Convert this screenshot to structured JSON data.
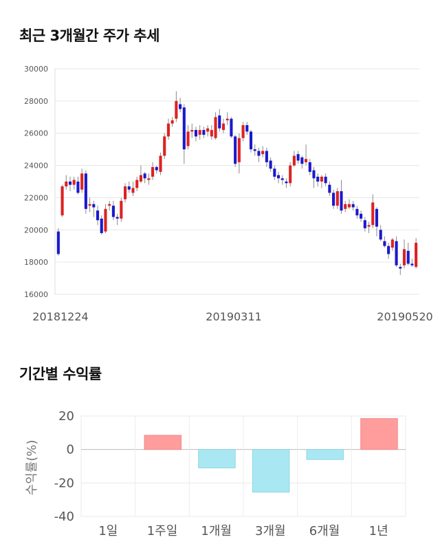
{
  "chart_data": [
    {
      "type": "candlestick",
      "title": "최근 3개월간 주가 추세",
      "ylim": [
        16000,
        30000
      ],
      "yticks": [
        16000,
        18000,
        20000,
        22000,
        24000,
        26000,
        28000,
        30000
      ],
      "xtick_labels": [
        "20181224",
        "20190311",
        "20190520"
      ],
      "up_color": "#dd2222",
      "down_color": "#1a1acc",
      "candles": [
        [
          19900,
          18500,
          20100,
          18400
        ],
        [
          20900,
          22700,
          22800,
          20800
        ],
        [
          22700,
          23000,
          23400,
          22500
        ],
        [
          23000,
          22800,
          23300,
          22400
        ],
        [
          22800,
          23100,
          23300,
          22500
        ],
        [
          23000,
          22300,
          23300,
          22200
        ],
        [
          22500,
          23500,
          23800,
          22300
        ],
        [
          23500,
          21300,
          23700,
          21000
        ],
        [
          21500,
          21600,
          22000,
          21100
        ],
        [
          21600,
          21400,
          21800,
          20800
        ],
        [
          21200,
          20600,
          21500,
          20300
        ],
        [
          20700,
          19800,
          20900,
          19700
        ],
        [
          19900,
          21300,
          21600,
          19800
        ],
        [
          21500,
          21600,
          21800,
          21200
        ],
        [
          21500,
          20800,
          21800,
          20600
        ],
        [
          20800,
          20700,
          21000,
          20300
        ],
        [
          20700,
          21800,
          22000,
          20500
        ],
        [
          21900,
          22700,
          22900,
          21700
        ],
        [
          22700,
          22500,
          23000,
          22300
        ],
        [
          22300,
          22600,
          23000,
          22100
        ],
        [
          22600,
          23100,
          23300,
          22400
        ],
        [
          23000,
          23400,
          24000,
          22900
        ],
        [
          23500,
          23200,
          23600,
          22900
        ],
        [
          23100,
          23200,
          23500,
          22800
        ],
        [
          23300,
          23900,
          24200,
          23100
        ],
        [
          23900,
          23700,
          24000,
          23500
        ],
        [
          23600,
          24600,
          24800,
          23400
        ],
        [
          24600,
          25800,
          26000,
          24400
        ],
        [
          25800,
          26600,
          26900,
          25600
        ],
        [
          26600,
          26800,
          27000,
          26400
        ],
        [
          26900,
          28000,
          28600,
          26700
        ],
        [
          27800,
          27500,
          28200,
          27300
        ],
        [
          27600,
          25000,
          27800,
          24100
        ],
        [
          25200,
          26100,
          26500,
          25000
        ],
        [
          26100,
          26200,
          26600,
          25700
        ],
        [
          26200,
          25800,
          26400,
          25500
        ],
        [
          25900,
          26200,
          26500,
          25600
        ],
        [
          26200,
          25900,
          26400,
          25700
        ],
        [
          26100,
          26300,
          26500,
          25800
        ],
        [
          25800,
          26200,
          26500,
          25600
        ],
        [
          25700,
          27000,
          27300,
          25600
        ],
        [
          27100,
          26300,
          27500,
          26100
        ],
        [
          26200,
          26600,
          26900,
          26000
        ],
        [
          26800,
          26900,
          27300,
          26500
        ],
        [
          26900,
          25800,
          27000,
          25700
        ],
        [
          25800,
          24100,
          25900,
          23900
        ],
        [
          24200,
          25700,
          26000,
          23500
        ],
        [
          25700,
          26500,
          26700,
          25500
        ],
        [
          26500,
          26100,
          26700,
          25900
        ],
        [
          26100,
          25000,
          26200,
          24800
        ],
        [
          25000,
          24900,
          25300,
          24600
        ],
        [
          24900,
          24600,
          25100,
          24200
        ],
        [
          24700,
          24900,
          25200,
          24500
        ],
        [
          24900,
          24200,
          25100,
          23900
        ],
        [
          24300,
          23800,
          24500,
          23600
        ],
        [
          23800,
          23300,
          24000,
          23100
        ],
        [
          23400,
          23200,
          23600,
          22900
        ],
        [
          23200,
          23100,
          23400,
          22800
        ],
        [
          23000,
          22900,
          23200,
          22600
        ],
        [
          22900,
          24000,
          24200,
          22700
        ],
        [
          24000,
          24600,
          24900,
          23900
        ],
        [
          24700,
          24300,
          24900,
          24100
        ],
        [
          24500,
          24100,
          24600,
          23800
        ],
        [
          24200,
          24400,
          25300,
          24000
        ],
        [
          24200,
          23600,
          24400,
          23400
        ],
        [
          23700,
          23200,
          23900,
          22600
        ],
        [
          23300,
          23000,
          23500,
          22700
        ],
        [
          23000,
          23300,
          23400,
          22600
        ],
        [
          23300,
          22900,
          23500,
          22700
        ],
        [
          22800,
          22300,
          23000,
          22100
        ],
        [
          22300,
          21500,
          22500,
          21300
        ],
        [
          21500,
          22400,
          22600,
          21300
        ],
        [
          22400,
          21200,
          23100,
          21000
        ],
        [
          21300,
          21600,
          21800,
          21100
        ],
        [
          21400,
          21600,
          21900,
          21300
        ],
        [
          21600,
          21400,
          21800,
          21200
        ],
        [
          21300,
          20900,
          21500,
          20700
        ],
        [
          21000,
          20700,
          21200,
          20500
        ],
        [
          20600,
          20100,
          20800,
          19900
        ],
        [
          20200,
          20300,
          20500,
          19800
        ],
        [
          20300,
          21700,
          22200,
          20100
        ],
        [
          21300,
          20200,
          21400,
          19600
        ],
        [
          20000,
          19400,
          20300,
          19300
        ],
        [
          19300,
          19000,
          19600,
          18900
        ],
        [
          19000,
          18500,
          19200,
          18200
        ],
        [
          18900,
          19400,
          19500,
          18700
        ],
        [
          19300,
          17800,
          19600,
          17700
        ],
        [
          17700,
          17600,
          17900,
          17200
        ],
        [
          17800,
          18800,
          19400,
          17600
        ],
        [
          18700,
          17900,
          19200,
          17800
        ],
        [
          17900,
          17800,
          18200,
          17700
        ],
        [
          17700,
          19200,
          19500,
          17600
        ]
      ]
    },
    {
      "type": "bar",
      "title": "기간별 수익률",
      "ylabel": "수익률(%)",
      "ylim": [
        -40,
        20
      ],
      "yticks": [
        20,
        0,
        -20,
        -40
      ],
      "categories": [
        "1일",
        "1주일",
        "1개월",
        "3개월",
        "6개월",
        "1년"
      ],
      "values": [
        0,
        8.5,
        -11,
        -25.5,
        -6,
        18.5
      ],
      "positive_color": "#ff9c9c",
      "negative_color": "#a9e8f2"
    }
  ]
}
